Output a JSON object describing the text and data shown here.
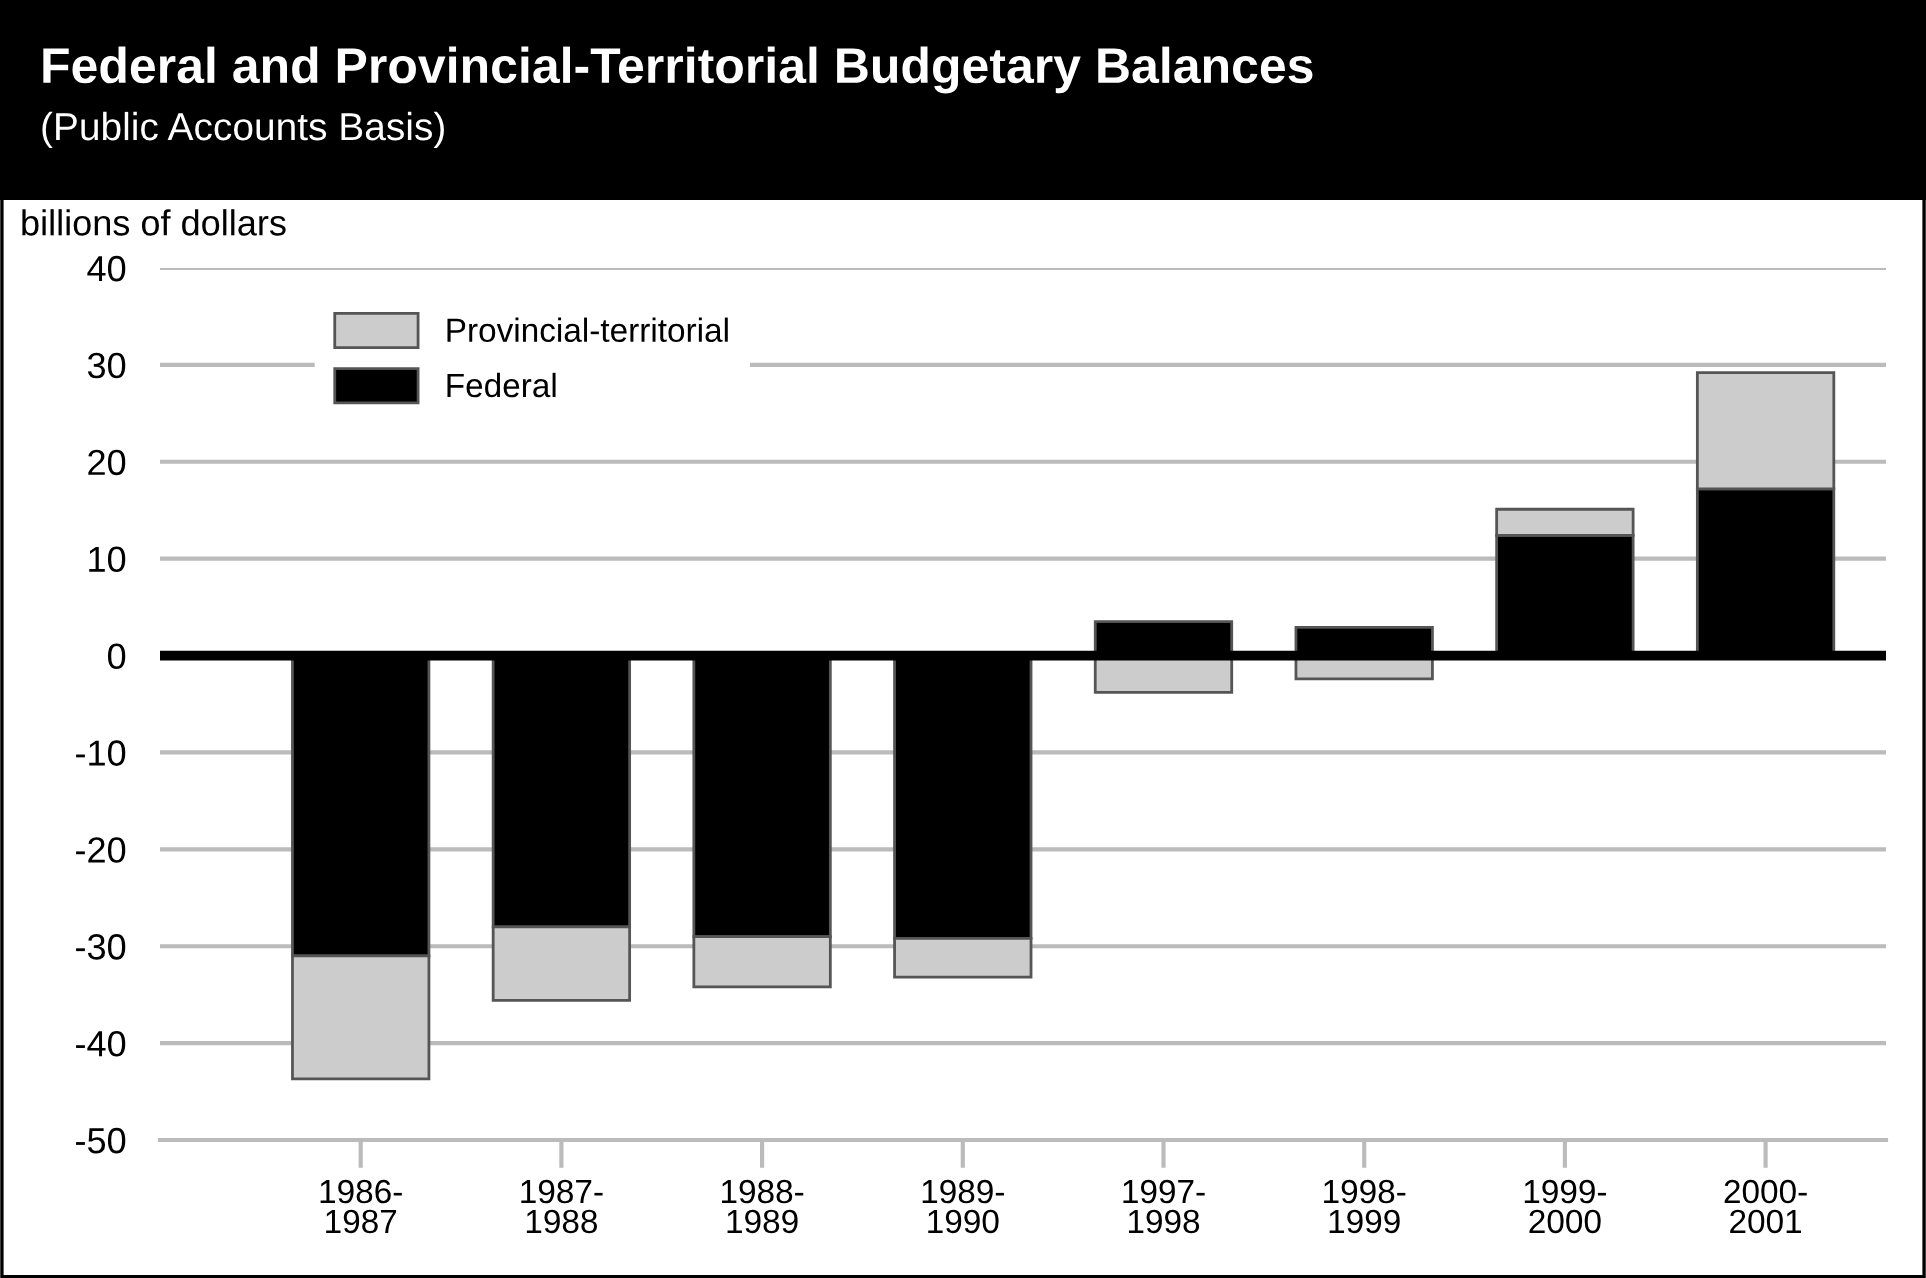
{
  "chart_data": {
    "type": "bar",
    "title": "Federal and Provincial-Territorial Budgetary Balances",
    "subtitle": "(Public Accounts Basis)",
    "ylabel": "billions of dollars",
    "categories": [
      "1986-\n1987",
      "1987-\n1988",
      "1988-\n1989",
      "1989-\n1990",
      "1997-\n1998",
      "1998-\n1999",
      "1999-\n2000",
      "2000-\n2001"
    ],
    "series": [
      {
        "name": "Federal",
        "color": "#000000",
        "values": [
          -31.0,
          -28.0,
          -29.0,
          -29.2,
          3.5,
          2.9,
          12.4,
          17.2
        ]
      },
      {
        "name": "Provincial-territorial",
        "color": "#cccccc",
        "values": [
          -12.7,
          -7.6,
          -5.2,
          -4.0,
          -3.8,
          -2.4,
          2.7,
          12.0
        ]
      }
    ],
    "stacked": true,
    "ylim": [
      -50,
      40
    ],
    "yticks": [
      -50,
      -40,
      -30,
      -20,
      -10,
      0,
      10,
      20,
      30,
      40
    ],
    "grid": "y",
    "legend": "top left",
    "ref_lines": [
      {
        "axis": "y",
        "value": 0,
        "color": "#000000"
      }
    ]
  }
}
